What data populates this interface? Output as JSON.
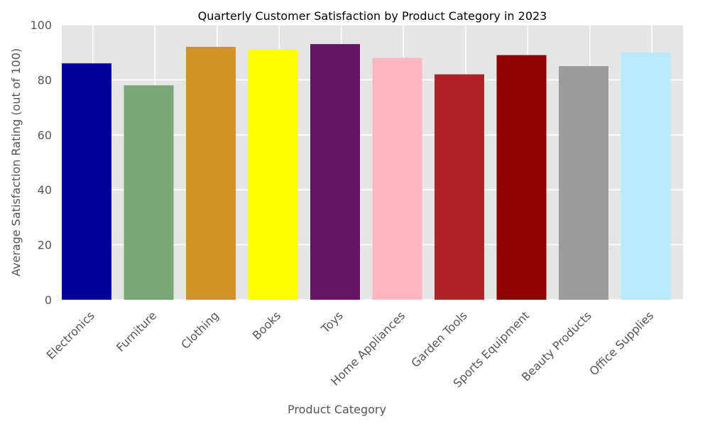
{
  "chart_data": {
    "type": "bar",
    "title": "Quarterly Customer Satisfaction by Product Category in 2023",
    "xlabel": "Product Category",
    "ylabel": "Average Satisfaction Rating (out of 100)",
    "ylim": [
      0,
      100
    ],
    "yticks": [
      0,
      20,
      40,
      60,
      80,
      100
    ],
    "grid": true,
    "categories": [
      "Electronics",
      "Furniture",
      "Clothing",
      "Books",
      "Toys",
      "Home Appliances",
      "Garden Tools",
      "Sports Equipment",
      "Beauty Products",
      "Office Supplies"
    ],
    "values": [
      86,
      78,
      92,
      91,
      93,
      88,
      82,
      89,
      85,
      90
    ],
    "colors": [
      "#000099",
      "#7ba779",
      "#d19226",
      "#ffff00",
      "#651461",
      "#ffb6c1",
      "#b02226",
      "#8f0000",
      "#9c9c9c",
      "#b8eafb"
    ],
    "plot_background": "#e5e5e5"
  }
}
